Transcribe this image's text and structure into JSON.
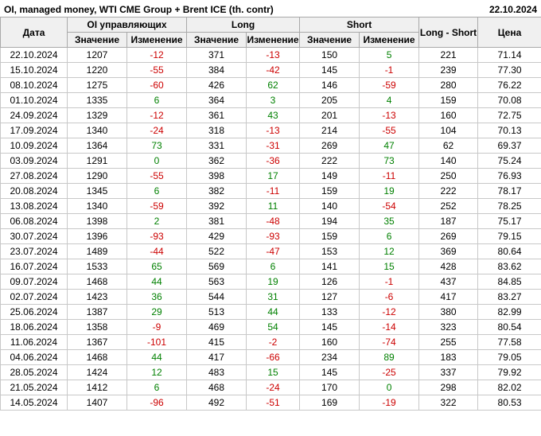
{
  "header": {
    "title": "OI, managed money, WTI CME Group + Brent ICE (th. contr)",
    "report_date": "22.10.2024"
  },
  "table": {
    "headers": {
      "date": "Дата",
      "oi_group": "OI управляющих",
      "long_group": "Long",
      "short_group": "Short",
      "value": "Значение",
      "change": "Изменение",
      "long_short": "Long - Short",
      "price": "Цена"
    },
    "colors": {
      "positive_change": "#008000",
      "negative_change": "#cc0000",
      "header_bg": "#f0f0f0",
      "grid_line": "#c8c8c8",
      "text": "#000000"
    }
  },
  "chart_data": {
    "type": "table",
    "title": "OI, managed money, WTI CME Group + Brent ICE (th. contr)",
    "report_date": "22.10.2024",
    "columns": [
      "Дата",
      "OI управляющих Значение",
      "OI управляющих Изменение",
      "Long Значение",
      "Long Изменение",
      "Short Значение",
      "Short Изменение",
      "Long - Short",
      "Цена"
    ],
    "rows": [
      [
        "22.10.2024",
        1207,
        -12,
        371,
        -13,
        150,
        5,
        221,
        71.14
      ],
      [
        "15.10.2024",
        1220,
        -55,
        384,
        -42,
        145,
        -1,
        239,
        77.3
      ],
      [
        "08.10.2024",
        1275,
        -60,
        426,
        62,
        146,
        -59,
        280,
        76.22
      ],
      [
        "01.10.2024",
        1335,
        6,
        364,
        3,
        205,
        4,
        159,
        70.08
      ],
      [
        "24.09.2024",
        1329,
        -12,
        361,
        43,
        201,
        -13,
        160,
        72.75
      ],
      [
        "17.09.2024",
        1340,
        -24,
        318,
        -13,
        214,
        -55,
        104,
        70.13
      ],
      [
        "10.09.2024",
        1364,
        73,
        331,
        -31,
        269,
        47,
        62,
        69.37
      ],
      [
        "03.09.2024",
        1291,
        0,
        362,
        -36,
        222,
        73,
        140,
        75.24
      ],
      [
        "27.08.2024",
        1290,
        -55,
        398,
        17,
        149,
        -11,
        250,
        76.93
      ],
      [
        "20.08.2024",
        1345,
        6,
        382,
        -11,
        159,
        19,
        222,
        78.17
      ],
      [
        "13.08.2024",
        1340,
        -59,
        392,
        11,
        140,
        -54,
        252,
        78.25
      ],
      [
        "06.08.2024",
        1398,
        2,
        381,
        -48,
        194,
        35,
        187,
        75.17
      ],
      [
        "30.07.2024",
        1396,
        -93,
        429,
        -93,
        159,
        6,
        269,
        79.15
      ],
      [
        "23.07.2024",
        1489,
        -44,
        522,
        -47,
        153,
        12,
        369,
        80.64
      ],
      [
        "16.07.2024",
        1533,
        65,
        569,
        6,
        141,
        15,
        428,
        83.62
      ],
      [
        "09.07.2024",
        1468,
        44,
        563,
        19,
        126,
        -1,
        437,
        84.85
      ],
      [
        "02.07.2024",
        1423,
        36,
        544,
        31,
        127,
        -6,
        417,
        83.27
      ],
      [
        "25.06.2024",
        1387,
        29,
        513,
        44,
        133,
        -12,
        380,
        82.99
      ],
      [
        "18.06.2024",
        1358,
        -9,
        469,
        54,
        145,
        -14,
        323,
        80.54
      ],
      [
        "11.06.2024",
        1367,
        -101,
        415,
        -2,
        160,
        -74,
        255,
        77.58
      ],
      [
        "04.06.2024",
        1468,
        44,
        417,
        -66,
        234,
        89,
        183,
        79.05
      ],
      [
        "28.05.2024",
        1424,
        12,
        483,
        15,
        145,
        -25,
        337,
        79.92
      ],
      [
        "21.05.2024",
        1412,
        6,
        468,
        -24,
        170,
        0,
        298,
        82.02
      ],
      [
        "14.05.2024",
        1407,
        -96,
        492,
        -51,
        169,
        -19,
        322,
        80.53
      ]
    ]
  }
}
